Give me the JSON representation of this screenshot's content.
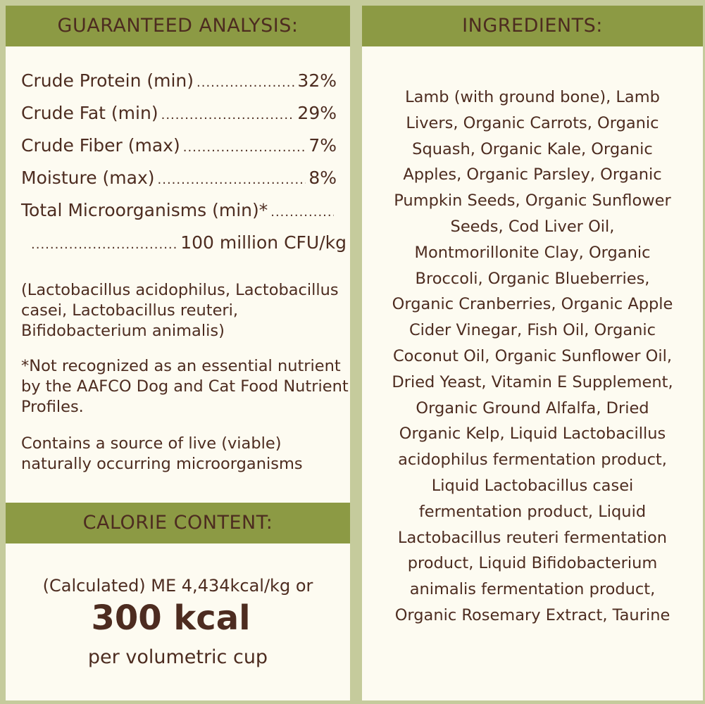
{
  "analysis": {
    "title": "GUARANTEED ANALYSIS:",
    "rows": [
      {
        "label": "Crude Protein (min)",
        "value": "32%"
      },
      {
        "label": "Crude Fat (min)",
        "value": "29%"
      },
      {
        "label": "Crude Fiber (max)",
        "value": "7%"
      },
      {
        "label": "Moisture (max)",
        "value": "8%"
      },
      {
        "label": "Total Microorganisms (min)*",
        "value": ""
      },
      {
        "label": "",
        "value": "100 million CFU/kg"
      }
    ],
    "strains": "(Lactobacillus acidophilus, Lactobacillus casei, Lactobacillus reuteri, Bifidobacterium animalis)",
    "footnote": "*Not recognized as an essential nutrient by the AAFCO Dog and Cat Food Nutrient Profiles.",
    "live_note": "Contains a source of live (viable) naturally occurring microorganisms"
  },
  "calorie": {
    "title": "CALORIE CONTENT:",
    "line1": "(Calculated) ME 4,434kcal/kg or",
    "big": "300 kcal",
    "line3": "per volumetric cup"
  },
  "ingredients": {
    "title": "INGREDIENTS:",
    "lines": [
      "Lamb (with ground bone), Lamb",
      "Livers, Organic Carrots, Organic",
      "Squash, Organic Kale, Organic",
      "Apples, Organic Parsley, Organic",
      "Pumpkin Seeds, Organic Sunflower",
      "Seeds, Cod Liver Oil,",
      "Montmorillonite Clay, Organic",
      "Broccoli, Organic Blueberries,",
      "Organic Cranberries, Organic Apple",
      "Cider Vinegar, Fish Oil, Organic",
      "Coconut Oil, Organic Sunflower Oil,",
      "Dried Yeast, Vitamin E Supplement,",
      "Organic Ground Alfalfa, Dried",
      "Organic Kelp, Liquid Lactobacillus",
      "acidophilus fermentation product,",
      "Liquid Lactobacillus casei",
      "fermentation product, Liquid",
      "Lactobacillus reuteri fermentation",
      "product, Liquid Bifidobacterium",
      "animalis fermentation product,",
      "Organic Rosemary Extract, Taurine"
    ]
  },
  "colors": {
    "header": "#8c9a44",
    "text": "#4d2c20",
    "panel": "#fdfbf1",
    "border": "#c5cb9c"
  }
}
